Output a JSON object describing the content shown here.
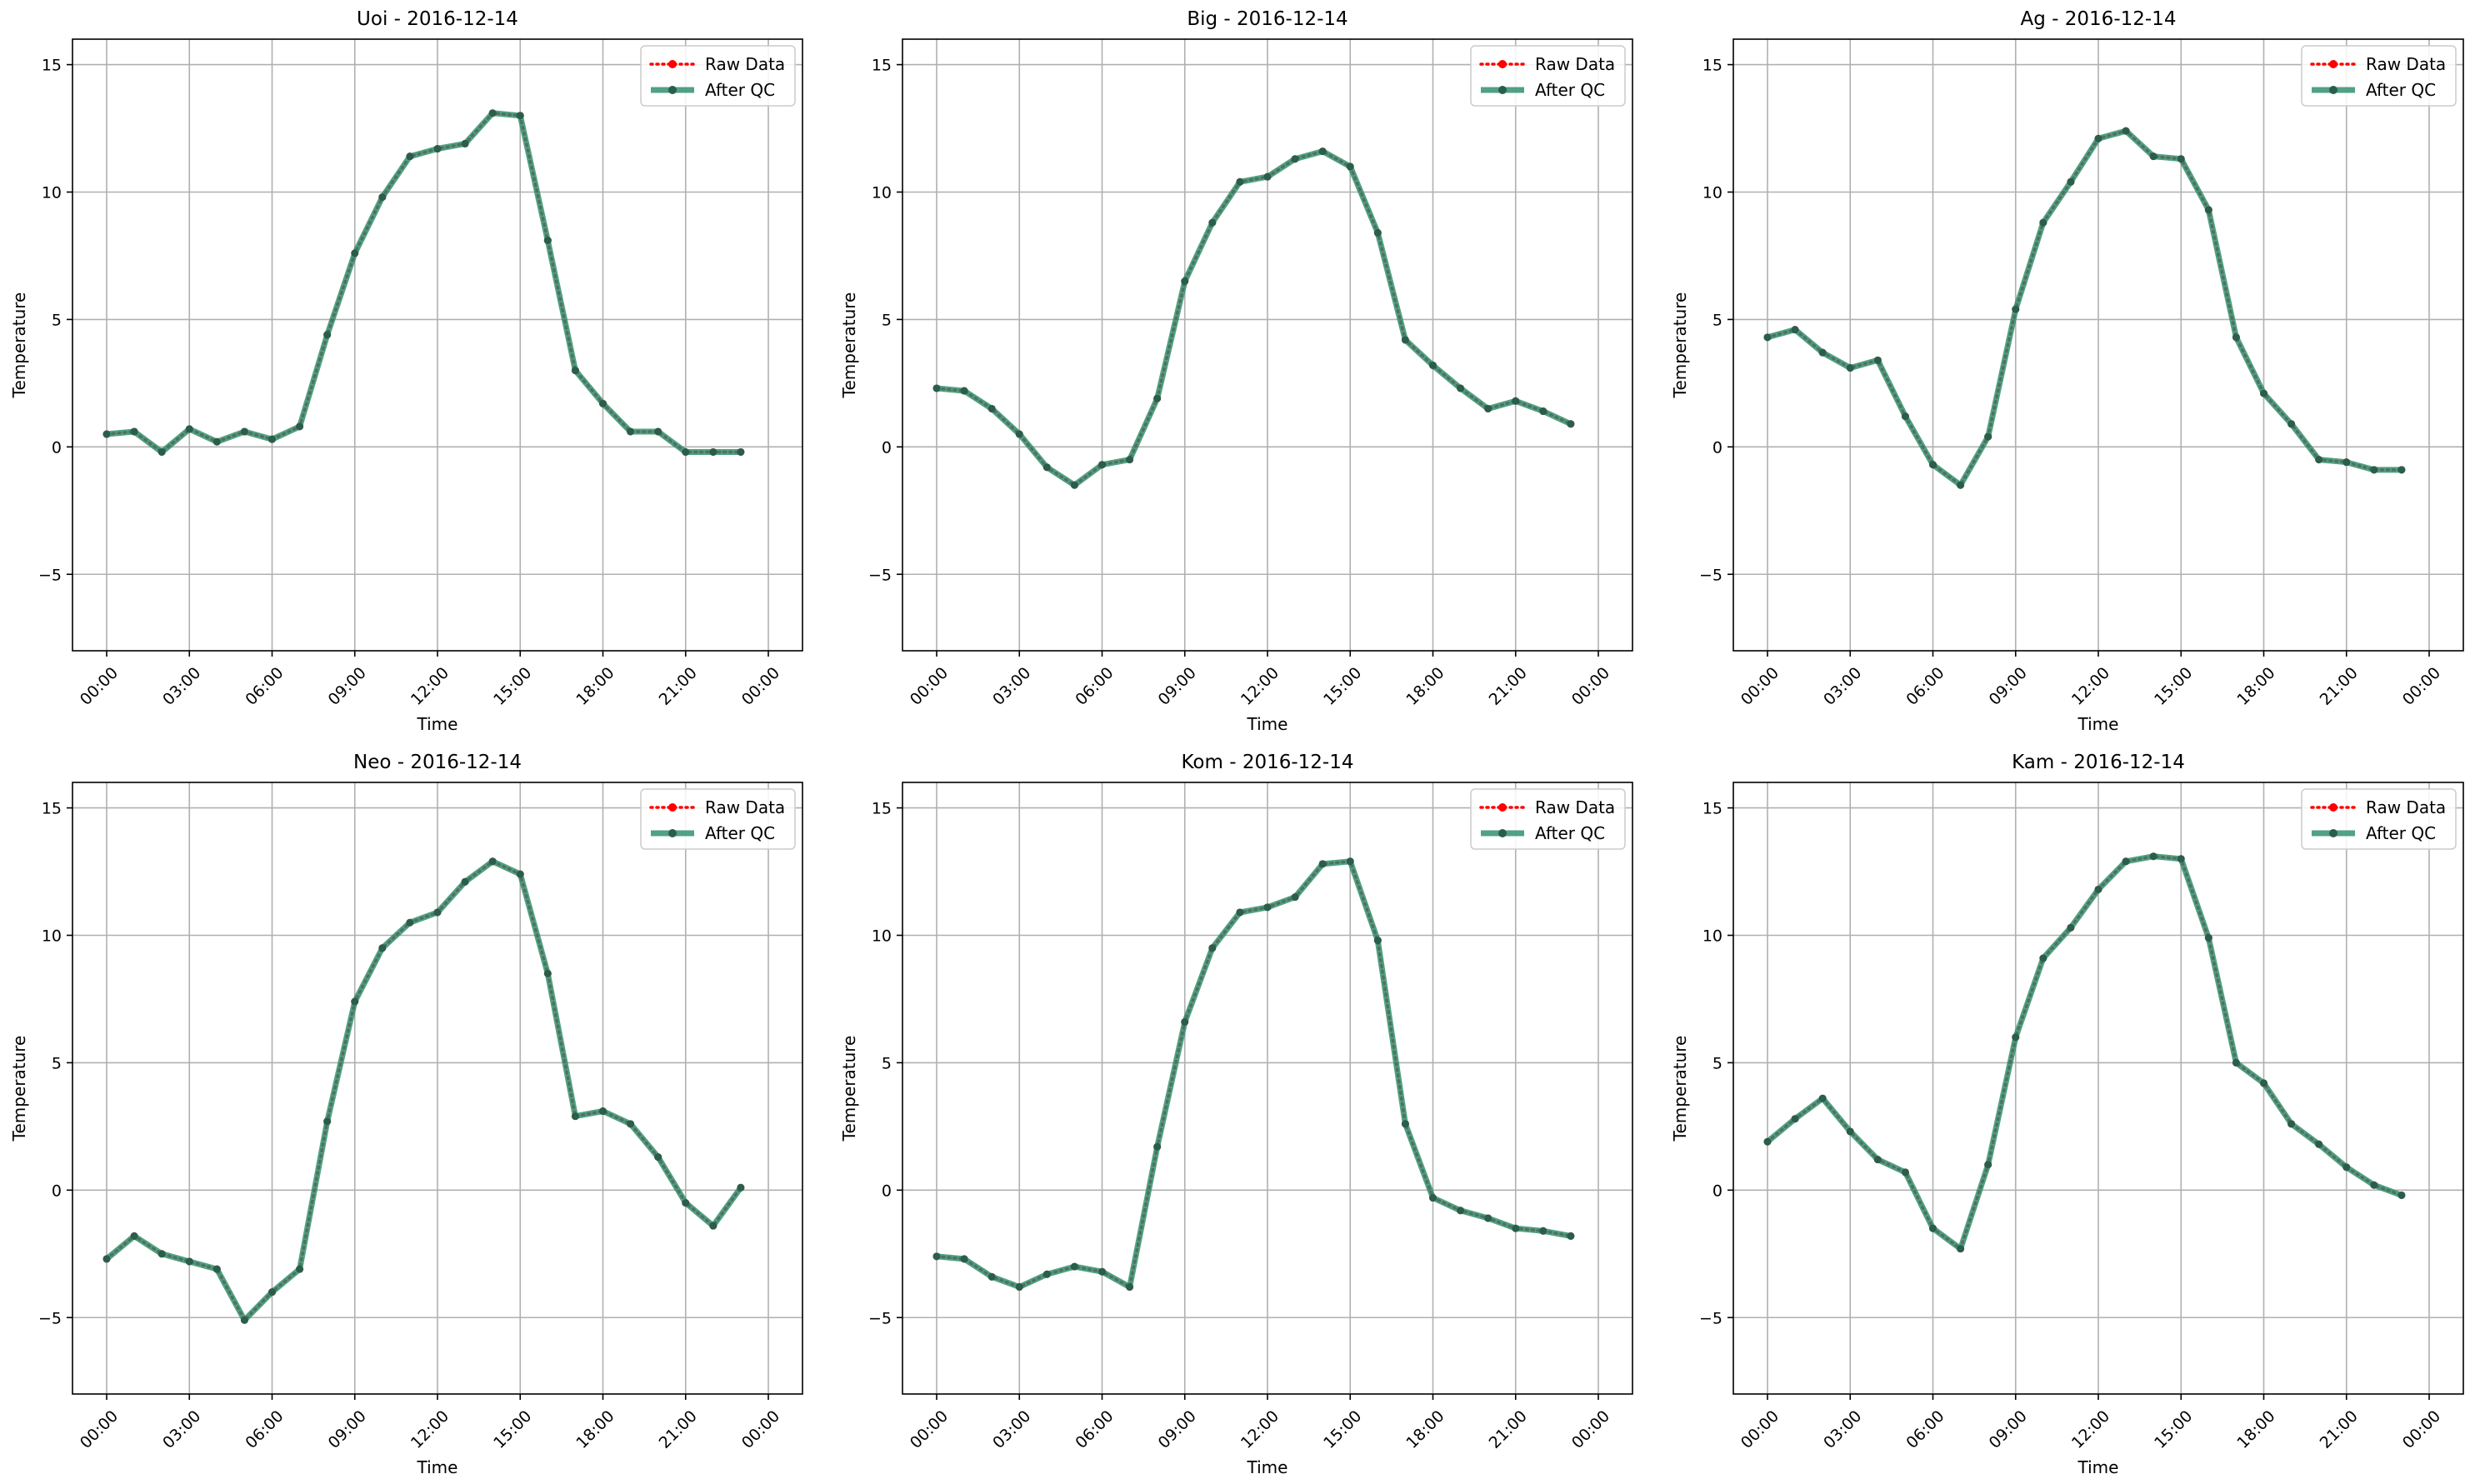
{
  "chart_data": [
    {
      "type": "line",
      "title": "Uoi - 2016-12-14",
      "xlabel": "Time",
      "ylabel": "Temperature",
      "xtick_labels": [
        "00:00",
        "03:00",
        "06:00",
        "09:00",
        "12:00",
        "15:00",
        "18:00",
        "21:00",
        "00:00"
      ],
      "yticks": [
        -5,
        0,
        5,
        10,
        15
      ],
      "ylim": [
        -8,
        16
      ],
      "grid": true,
      "legend_position": "top-right",
      "x_hours": [
        0,
        1,
        2,
        3,
        4,
        5,
        6,
        7,
        8,
        9,
        10,
        11,
        12,
        13,
        14,
        15,
        16,
        17,
        18,
        19,
        20,
        21,
        22,
        23
      ],
      "series": [
        {
          "name": "Raw Data",
          "color": "#ff0000",
          "style": "dotted",
          "values": [
            0.5,
            0.6,
            -0.2,
            0.7,
            0.2,
            0.6,
            0.3,
            0.8,
            4.4,
            7.6,
            9.8,
            11.4,
            11.7,
            11.9,
            13.1,
            13.0,
            8.1,
            3.0,
            1.7,
            0.6,
            0.6,
            -0.2,
            -0.2,
            -0.2
          ]
        },
        {
          "name": "After QC",
          "color": "#2a8c6c",
          "style": "solid",
          "values": [
            0.5,
            0.6,
            -0.2,
            0.7,
            0.2,
            0.6,
            0.3,
            0.8,
            4.4,
            7.6,
            9.8,
            11.4,
            11.7,
            11.9,
            13.1,
            13.0,
            8.1,
            3.0,
            1.7,
            0.6,
            0.6,
            -0.2,
            -0.2,
            -0.2
          ]
        }
      ]
    },
    {
      "type": "line",
      "title": "Big - 2016-12-14",
      "xlabel": "Time",
      "ylabel": "Temperature",
      "xtick_labels": [
        "00:00",
        "03:00",
        "06:00",
        "09:00",
        "12:00",
        "15:00",
        "18:00",
        "21:00",
        "00:00"
      ],
      "yticks": [
        -5,
        0,
        5,
        10,
        15
      ],
      "ylim": [
        -8,
        16
      ],
      "grid": true,
      "legend_position": "top-right",
      "x_hours": [
        0,
        1,
        2,
        3,
        4,
        5,
        6,
        7,
        8,
        9,
        10,
        11,
        12,
        13,
        14,
        15,
        16,
        17,
        18,
        19,
        20,
        21,
        22,
        23
      ],
      "series": [
        {
          "name": "Raw Data",
          "color": "#ff0000",
          "style": "dotted",
          "values": [
            2.3,
            2.2,
            1.5,
            0.5,
            -0.8,
            -1.5,
            -0.7,
            -0.5,
            1.9,
            6.5,
            8.8,
            10.4,
            10.6,
            11.3,
            11.6,
            11.0,
            8.4,
            4.2,
            3.2,
            2.3,
            1.5,
            1.8,
            1.4,
            0.9
          ]
        },
        {
          "name": "After QC",
          "color": "#2a8c6c",
          "style": "solid",
          "values": [
            2.3,
            2.2,
            1.5,
            0.5,
            -0.8,
            -1.5,
            -0.7,
            -0.5,
            1.9,
            6.5,
            8.8,
            10.4,
            10.6,
            11.3,
            11.6,
            11.0,
            8.4,
            4.2,
            3.2,
            2.3,
            1.5,
            1.8,
            1.4,
            0.9
          ]
        }
      ]
    },
    {
      "type": "line",
      "title": "Ag - 2016-12-14",
      "xlabel": "Time",
      "ylabel": "Temperature",
      "xtick_labels": [
        "00:00",
        "03:00",
        "06:00",
        "09:00",
        "12:00",
        "15:00",
        "18:00",
        "21:00",
        "00:00"
      ],
      "yticks": [
        -5,
        0,
        5,
        10,
        15
      ],
      "ylim": [
        -8,
        16
      ],
      "grid": true,
      "legend_position": "top-right",
      "x_hours": [
        0,
        1,
        2,
        3,
        4,
        5,
        6,
        7,
        8,
        9,
        10,
        11,
        12,
        13,
        14,
        15,
        16,
        17,
        18,
        19,
        20,
        21,
        22,
        23
      ],
      "series": [
        {
          "name": "Raw Data",
          "color": "#ff0000",
          "style": "dotted",
          "values": [
            4.3,
            4.6,
            3.7,
            3.1,
            3.4,
            1.2,
            -0.7,
            -1.5,
            0.4,
            5.4,
            8.8,
            10.4,
            12.1,
            12.4,
            11.4,
            11.3,
            9.3,
            4.3,
            2.1,
            0.9,
            -0.5,
            -0.6,
            -0.9,
            -0.9
          ]
        },
        {
          "name": "After QC",
          "color": "#2a8c6c",
          "style": "solid",
          "values": [
            4.3,
            4.6,
            3.7,
            3.1,
            3.4,
            1.2,
            -0.7,
            -1.5,
            0.4,
            5.4,
            8.8,
            10.4,
            12.1,
            12.4,
            11.4,
            11.3,
            9.3,
            4.3,
            2.1,
            0.9,
            -0.5,
            -0.6,
            -0.9,
            -0.9
          ]
        }
      ]
    },
    {
      "type": "line",
      "title": "Neo - 2016-12-14",
      "xlabel": "Time",
      "ylabel": "Temperature",
      "xtick_labels": [
        "00:00",
        "03:00",
        "06:00",
        "09:00",
        "12:00",
        "15:00",
        "18:00",
        "21:00",
        "00:00"
      ],
      "yticks": [
        -5,
        0,
        5,
        10,
        15
      ],
      "ylim": [
        -8,
        16
      ],
      "grid": true,
      "legend_position": "top-right",
      "x_hours": [
        0,
        1,
        2,
        3,
        4,
        5,
        6,
        7,
        8,
        9,
        10,
        11,
        12,
        13,
        14,
        15,
        16,
        17,
        18,
        19,
        20,
        21,
        22,
        23
      ],
      "series": [
        {
          "name": "Raw Data",
          "color": "#ff0000",
          "style": "dotted",
          "values": [
            -2.7,
            -1.8,
            -2.5,
            -2.8,
            -3.1,
            -5.1,
            -4.0,
            -3.1,
            2.7,
            7.4,
            9.5,
            10.5,
            10.9,
            12.1,
            12.9,
            12.4,
            8.5,
            2.9,
            3.1,
            2.6,
            1.3,
            -0.5,
            -1.4,
            0.1
          ]
        },
        {
          "name": "After QC",
          "color": "#2a8c6c",
          "style": "solid",
          "values": [
            -2.7,
            -1.8,
            -2.5,
            -2.8,
            -3.1,
            -5.1,
            -4.0,
            -3.1,
            2.7,
            7.4,
            9.5,
            10.5,
            10.9,
            12.1,
            12.9,
            12.4,
            8.5,
            2.9,
            3.1,
            2.6,
            1.3,
            -0.5,
            -1.4,
            0.1
          ]
        }
      ]
    },
    {
      "type": "line",
      "title": "Kom - 2016-12-14",
      "xlabel": "Time",
      "ylabel": "Temperature",
      "xtick_labels": [
        "00:00",
        "03:00",
        "06:00",
        "09:00",
        "12:00",
        "15:00",
        "18:00",
        "21:00",
        "00:00"
      ],
      "yticks": [
        -5,
        0,
        5,
        10,
        15
      ],
      "ylim": [
        -8,
        16
      ],
      "grid": true,
      "legend_position": "top-right",
      "x_hours": [
        0,
        1,
        2,
        3,
        4,
        5,
        6,
        7,
        8,
        9,
        10,
        11,
        12,
        13,
        14,
        15,
        16,
        17,
        18,
        19,
        20,
        21,
        22,
        23
      ],
      "series": [
        {
          "name": "Raw Data",
          "color": "#ff0000",
          "style": "dotted",
          "values": [
            -2.6,
            -2.7,
            -3.4,
            -3.8,
            -3.3,
            -3.0,
            -3.2,
            -3.8,
            1.7,
            6.6,
            9.5,
            10.9,
            11.1,
            11.5,
            12.8,
            12.9,
            9.8,
            2.6,
            -0.3,
            -0.8,
            -1.1,
            -1.5,
            -1.6,
            -1.8
          ]
        },
        {
          "name": "After QC",
          "color": "#2a8c6c",
          "style": "solid",
          "values": [
            -2.6,
            -2.7,
            -3.4,
            -3.8,
            -3.3,
            -3.0,
            -3.2,
            -3.8,
            1.7,
            6.6,
            9.5,
            10.9,
            11.1,
            11.5,
            12.8,
            12.9,
            9.8,
            2.6,
            -0.3,
            -0.8,
            -1.1,
            -1.5,
            -1.6,
            -1.8
          ]
        }
      ]
    },
    {
      "type": "line",
      "title": "Kam - 2016-12-14",
      "xlabel": "Time",
      "ylabel": "Temperature",
      "xtick_labels": [
        "00:00",
        "03:00",
        "06:00",
        "09:00",
        "12:00",
        "15:00",
        "18:00",
        "21:00",
        "00:00"
      ],
      "yticks": [
        -5,
        0,
        5,
        10,
        15
      ],
      "ylim": [
        -8,
        16
      ],
      "grid": true,
      "legend_position": "top-right",
      "x_hours": [
        0,
        1,
        2,
        3,
        4,
        5,
        6,
        7,
        8,
        9,
        10,
        11,
        12,
        13,
        14,
        15,
        16,
        17,
        18,
        19,
        20,
        21,
        22,
        23
      ],
      "series": [
        {
          "name": "Raw Data",
          "color": "#ff0000",
          "style": "dotted",
          "values": [
            1.9,
            2.8,
            3.6,
            2.3,
            1.2,
            0.7,
            -1.5,
            -2.3,
            1.0,
            6.0,
            9.1,
            10.3,
            11.8,
            12.9,
            13.1,
            13.0,
            9.9,
            5.0,
            4.2,
            2.6,
            1.8,
            0.9,
            0.2,
            -0.2
          ]
        },
        {
          "name": "After QC",
          "color": "#2a8c6c",
          "style": "solid",
          "values": [
            1.9,
            2.8,
            3.6,
            2.3,
            1.2,
            0.7,
            -1.5,
            -2.3,
            1.0,
            6.0,
            9.1,
            10.3,
            11.8,
            12.9,
            13.1,
            13.0,
            9.9,
            5.0,
            4.2,
            2.6,
            1.8,
            0.9,
            0.2,
            -0.2
          ]
        }
      ]
    }
  ]
}
